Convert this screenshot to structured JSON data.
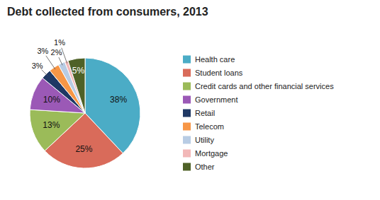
{
  "chart_data": {
    "type": "pie",
    "title": "Debt collected from consumers, 2013",
    "categories": [
      "Health care",
      "Student loans",
      "Credit cards and other financial services",
      "Government",
      "Retail",
      "Telecom",
      "Utility",
      "Mortgage",
      "Other"
    ],
    "values": [
      38,
      25,
      13,
      10,
      3,
      3,
      2,
      1,
      5
    ],
    "value_labels": [
      "38%",
      "25%",
      "13%",
      "10%",
      "3%",
      "3%",
      "2%",
      "1%",
      "5%"
    ],
    "colors": [
      "#4bacc6",
      "#d96b5a",
      "#9bbb59",
      "#9b59b6",
      "#1f3864",
      "#f79646",
      "#b8cce4",
      "#f2b8b8",
      "#4e6127"
    ],
    "data_labels": true,
    "legend": "right"
  }
}
